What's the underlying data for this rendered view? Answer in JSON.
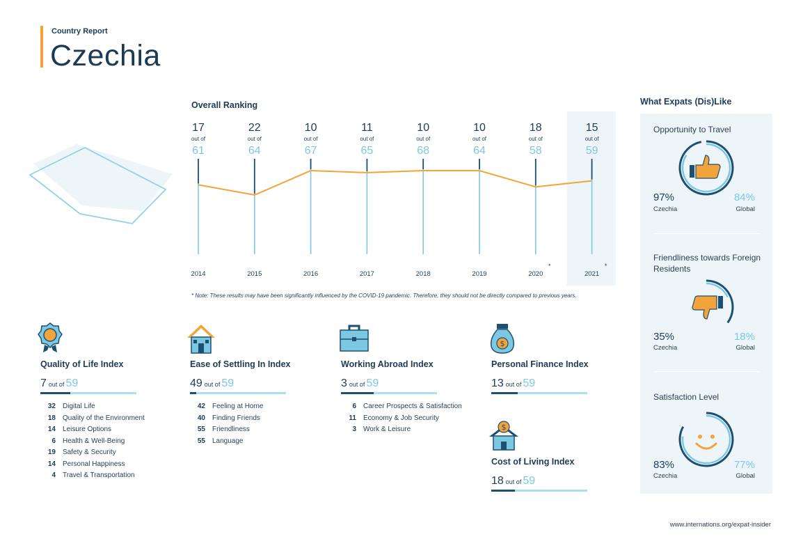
{
  "header": {
    "kicker": "Country Report",
    "title": "Czechia"
  },
  "ranking": {
    "title": "Overall Ranking",
    "out_of_label": "out of",
    "note": "* Note: These results may have been significantly influenced by the COVID-19 pandemic. Therefore, they should not be directly compared to previous years."
  },
  "chart_data": {
    "type": "line",
    "title": "Overall Ranking",
    "x": [
      "2014",
      "2015",
      "2016",
      "2017",
      "2018",
      "2019",
      "2020",
      "2021"
    ],
    "x_markers": [
      "",
      "",
      "",
      "",
      "",
      "",
      "*",
      "*"
    ],
    "series": [
      {
        "values": [
          17,
          22,
          10,
          11,
          10,
          10,
          18,
          15
        ]
      }
    ],
    "totals": [
      61,
      64,
      67,
      65,
      68,
      64,
      58,
      59
    ],
    "highlight": "2021",
    "y_inverted": true,
    "colors": {
      "line": "#f2a33a",
      "stem": "#7cc8e2",
      "stem_top": "#1d4f73",
      "highlight_bg": "#eef5f9"
    }
  },
  "indices": [
    {
      "title": "Quality of Life Index",
      "icon": "medal-icon",
      "rank": "7",
      "out_of": "out of",
      "total": "59",
      "rank_value": 7,
      "total_value": 59,
      "items": [
        {
          "num": "32",
          "label": "Digital Life"
        },
        {
          "num": "18",
          "label": "Quality of the Environment"
        },
        {
          "num": "14",
          "label": "Leisure Options"
        },
        {
          "num": "6",
          "label": "Health & Well-Being"
        },
        {
          "num": "19",
          "label": "Safety & Security"
        },
        {
          "num": "14",
          "label": "Personal Happiness"
        },
        {
          "num": "4",
          "label": "Travel & Transportation"
        }
      ]
    },
    {
      "title": "Ease of Settling In Index",
      "icon": "house-icon",
      "rank": "49",
      "out_of": "out of",
      "total": "59",
      "rank_value": 49,
      "total_value": 59,
      "items": [
        {
          "num": "42",
          "label": "Feeling at Home"
        },
        {
          "num": "40",
          "label": "Finding Friends"
        },
        {
          "num": "55",
          "label": "Friendliness"
        },
        {
          "num": "55",
          "label": "Language"
        }
      ]
    },
    {
      "title": "Working Abroad Index",
      "icon": "briefcase-icon",
      "rank": "3",
      "out_of": "out of",
      "total": "59",
      "rank_value": 3,
      "total_value": 59,
      "items": [
        {
          "num": "6",
          "label": "Career Prospects & Satisfaction"
        },
        {
          "num": "11",
          "label": "Economy & Job Security"
        },
        {
          "num": "3",
          "label": "Work & Leisure"
        }
      ]
    },
    {
      "title": "Personal Finance Index",
      "icon": "money-bag-icon",
      "rank": "13",
      "out_of": "out of",
      "total": "59",
      "rank_value": 13,
      "total_value": 59,
      "items": []
    },
    {
      "title": "Cost of Living Index",
      "icon": "house-coin-icon",
      "rank": "18",
      "out_of": "out of",
      "total": "59",
      "rank_value": 18,
      "total_value": 59,
      "items": []
    }
  ],
  "sidebar": {
    "title": "What Expats (Dis)Like",
    "cards": [
      {
        "title": "Opportunity to Travel",
        "icon": "thumbs-up-icon",
        "local_pct": "97%",
        "local_label": "Czechia",
        "global_pct": "84%",
        "global_label": "Global",
        "local_value": 97,
        "global_value": 84
      },
      {
        "title": "Friendliness towards Foreign Residents",
        "icon": "thumbs-down-icon",
        "local_pct": "35%",
        "local_label": "Czechia",
        "global_pct": "18%",
        "global_label": "Global",
        "local_value": 35,
        "global_value": 18
      },
      {
        "title": "Satisfaction Level",
        "icon": "smiley-icon",
        "local_pct": "83%",
        "local_label": "Czechia",
        "global_pct": "77%",
        "global_label": "Global",
        "local_value": 83,
        "global_value": 77
      }
    ]
  },
  "footer": {
    "url": "www.internations.org/expat-insider"
  }
}
